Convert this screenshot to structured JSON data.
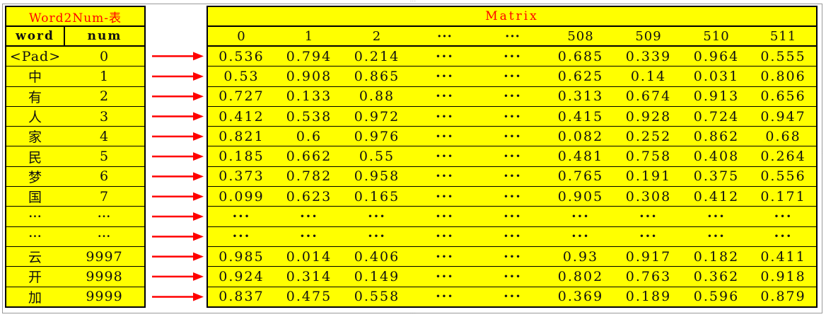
{
  "left_table": {
    "title": "Word2Num-表",
    "headers": [
      "word",
      "num"
    ],
    "rows": [
      [
        "<Pad>",
        "0"
      ],
      [
        "中",
        "1"
      ],
      [
        "有",
        "2"
      ],
      [
        "人",
        "3"
      ],
      [
        "家",
        "4"
      ],
      [
        "民",
        "5"
      ],
      [
        "梦",
        "6"
      ],
      [
        "国",
        "7"
      ],
      [
        "···",
        "···"
      ],
      [
        "···",
        "···"
      ],
      [
        "云",
        "9997"
      ],
      [
        "开",
        "9998"
      ],
      [
        "加",
        "9999"
      ]
    ]
  },
  "matrix": {
    "title": "Matrix",
    "headers": [
      "0",
      "1",
      "2",
      "···",
      "···",
      "508",
      "509",
      "510",
      "511"
    ],
    "rows": [
      [
        "0.536",
        "0.794",
        "0.214",
        "···",
        "···",
        "0.685",
        "0.339",
        "0.964",
        "0.555"
      ],
      [
        "0.53",
        "0.908",
        "0.865",
        "···",
        "···",
        "0.625",
        "0.14",
        "0.031",
        "0.806"
      ],
      [
        "0.727",
        "0.133",
        "0.88",
        "···",
        "···",
        "0.313",
        "0.674",
        "0.913",
        "0.656"
      ],
      [
        "0.412",
        "0.538",
        "0.972",
        "···",
        "···",
        "0.415",
        "0.928",
        "0.724",
        "0.947"
      ],
      [
        "0.821",
        "0.6",
        "0.976",
        "···",
        "···",
        "0.082",
        "0.252",
        "0.862",
        "0.68"
      ],
      [
        "0.185",
        "0.662",
        "0.55",
        "···",
        "···",
        "0.481",
        "0.758",
        "0.408",
        "0.264"
      ],
      [
        "0.373",
        "0.782",
        "0.958",
        "···",
        "···",
        "0.765",
        "0.191",
        "0.375",
        "0.556"
      ],
      [
        "0.099",
        "0.623",
        "0.165",
        "···",
        "···",
        "0.905",
        "0.308",
        "0.412",
        "0.171"
      ],
      [
        "···",
        "···",
        "···",
        "···",
        "···",
        "···",
        "···",
        "···",
        "···"
      ],
      [
        "···",
        "···",
        "···",
        "···",
        "···",
        "···",
        "···",
        "···",
        "···"
      ],
      [
        "0.985",
        "0.014",
        "0.406",
        "···",
        "···",
        "0.93",
        "0.917",
        "0.182",
        "0.411"
      ],
      [
        "0.924",
        "0.314",
        "0.149",
        "···",
        "···",
        "0.802",
        "0.763",
        "0.362",
        "0.918"
      ],
      [
        "0.837",
        "0.475",
        "0.558",
        "···",
        "···",
        "0.369",
        "0.189",
        "0.596",
        "0.879"
      ]
    ]
  },
  "colors": {
    "cell_bg": "#ffff00",
    "title_text": "#ff0000",
    "arrow": "#ff0000",
    "border": "#000000"
  },
  "arrow_count": 13
}
